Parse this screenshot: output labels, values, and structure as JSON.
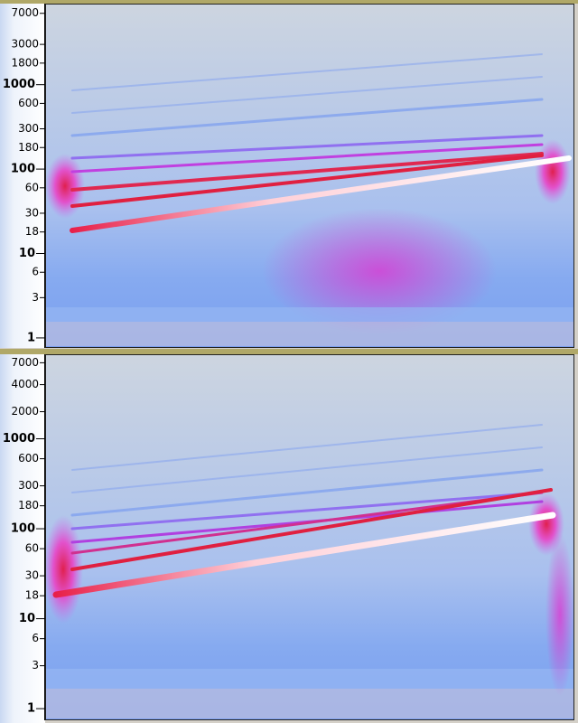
{
  "panels": [
    {
      "log_scale": true,
      "ylim": [
        0.78,
        8900
      ],
      "yticks": [
        7000,
        3000,
        1800,
        1000,
        600,
        300,
        180,
        100,
        60,
        30,
        18,
        10,
        6,
        3,
        1
      ]
    },
    {
      "log_scale": true,
      "ylim": [
        0.76,
        8500
      ],
      "yticks": [
        7000,
        4000,
        2000,
        1000,
        600,
        300,
        180,
        100,
        60,
        30,
        18,
        10,
        6,
        3,
        1
      ]
    }
  ]
}
